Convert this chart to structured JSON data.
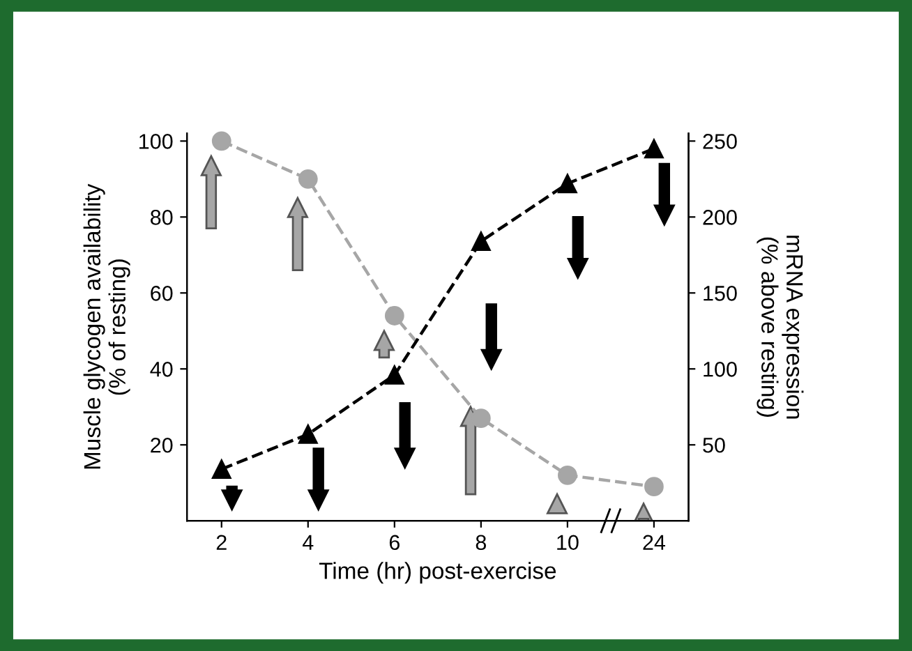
{
  "chart_data": {
    "type": "line",
    "xlabel": "Time (hr) post-exercise",
    "ylabel": "Muscle glycogen availability\n(% of resting)",
    "y2label": "mRNA expression\n(% above resting)",
    "categories": [
      "2",
      "4",
      "6",
      "8",
      "10",
      "24"
    ],
    "series": [
      {
        "color": "#a6a6a6",
        "values": [
          100,
          90,
          54,
          27,
          12,
          9
        ],
        "marker": "circle"
      },
      {
        "color": "#000000",
        "values": [
          34,
          57,
          96,
          184,
          222,
          245
        ],
        "marker": "triangle",
        "axis": "y2"
      }
    ],
    "ylim": [
      0,
      102
    ],
    "yticks": [
      20,
      40,
      60,
      80,
      100
    ],
    "y2lim": [
      0,
      255
    ],
    "y2ticks": [
      50,
      100,
      150,
      200,
      250
    ],
    "line_style": "dashed",
    "grid": false,
    "legend": false
  }
}
